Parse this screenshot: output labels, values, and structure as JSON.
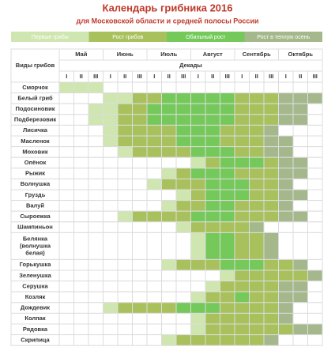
{
  "header": {
    "title": "Календарь грибника 2016",
    "subtitle": "для Московской области и средней полосы России"
  },
  "legend": [
    {
      "label": "Первые грибы",
      "color": "#cfe6b0"
    },
    {
      "label": "Рост грибов",
      "color": "#a9c15c"
    },
    {
      "label": "Обильный рост",
      "color": "#74c95a"
    },
    {
      "label": "Рост в теплую осень",
      "color": "#a4b88c"
    }
  ],
  "table": {
    "species_header": "Виды грибов",
    "decades_header": "Декады",
    "months": [
      "Май",
      "Июнь",
      "Июль",
      "Август",
      "Сентябрь",
      "Октябрь"
    ],
    "decades": [
      "I",
      "II",
      "III"
    ],
    "rows": [
      {
        "name": "Сморчок",
        "cells": [
          1,
          1,
          1,
          null,
          null,
          null,
          null,
          null,
          null,
          null,
          null,
          null,
          null,
          null,
          null,
          null,
          null,
          null
        ]
      },
      {
        "name": "Белый гриб",
        "cells": [
          null,
          null,
          null,
          1,
          1,
          2,
          2,
          3,
          3,
          3,
          3,
          3,
          2,
          2,
          2,
          4,
          4,
          4
        ]
      },
      {
        "name": "Подосиновик",
        "cells": [
          null,
          null,
          1,
          1,
          2,
          2,
          3,
          3,
          3,
          3,
          3,
          3,
          2,
          2,
          2,
          4,
          4,
          null
        ]
      },
      {
        "name": "Подберезовик",
        "cells": [
          null,
          null,
          1,
          1,
          2,
          2,
          3,
          3,
          3,
          3,
          3,
          3,
          2,
          2,
          2,
          4,
          4,
          null
        ]
      },
      {
        "name": "Лисичка",
        "cells": [
          null,
          null,
          null,
          1,
          2,
          2,
          2,
          2,
          3,
          3,
          3,
          2,
          2,
          2,
          4,
          null,
          null,
          null
        ]
      },
      {
        "name": "Масленок",
        "cells": [
          null,
          null,
          null,
          1,
          2,
          2,
          2,
          2,
          3,
          3,
          3,
          2,
          2,
          2,
          4,
          4,
          null,
          null
        ]
      },
      {
        "name": "Моховик",
        "cells": [
          null,
          null,
          null,
          null,
          1,
          2,
          2,
          2,
          2,
          3,
          3,
          3,
          2,
          2,
          4,
          4,
          null,
          null
        ]
      },
      {
        "name": "Опёнок",
        "cells": [
          null,
          null,
          null,
          null,
          null,
          null,
          null,
          null,
          null,
          1,
          2,
          3,
          3,
          3,
          2,
          4,
          4,
          null
        ]
      },
      {
        "name": "Рыжик",
        "cells": [
          null,
          null,
          null,
          null,
          null,
          null,
          null,
          1,
          2,
          3,
          3,
          3,
          2,
          2,
          2,
          4,
          4,
          null
        ]
      },
      {
        "name": "Волнушка",
        "cells": [
          null,
          null,
          null,
          null,
          null,
          null,
          1,
          2,
          2,
          2,
          3,
          3,
          3,
          2,
          2,
          4,
          null,
          null
        ]
      },
      {
        "name": "Груздь",
        "cells": [
          null,
          null,
          null,
          null,
          null,
          null,
          null,
          null,
          1,
          2,
          3,
          3,
          3,
          2,
          2,
          4,
          4,
          null
        ]
      },
      {
        "name": "Валуй",
        "cells": [
          null,
          null,
          null,
          null,
          null,
          null,
          null,
          1,
          2,
          2,
          3,
          3,
          2,
          2,
          2,
          4,
          null,
          null
        ]
      },
      {
        "name": "Сыроежка",
        "cells": [
          null,
          null,
          null,
          null,
          1,
          2,
          2,
          2,
          2,
          3,
          3,
          3,
          2,
          2,
          2,
          4,
          4,
          null
        ]
      },
      {
        "name": "Шампиньон",
        "cells": [
          null,
          null,
          null,
          null,
          null,
          null,
          null,
          null,
          1,
          2,
          2,
          2,
          2,
          4,
          null,
          null,
          null,
          null
        ]
      },
      {
        "name": [
          "Белянка",
          "(волнушка",
          "белая)"
        ],
        "cells": [
          null,
          null,
          null,
          null,
          null,
          null,
          null,
          null,
          null,
          1,
          3,
          3,
          2,
          2,
          4,
          null,
          null,
          null
        ]
      },
      {
        "name": "Горькушка",
        "cells": [
          null,
          null,
          null,
          null,
          null,
          null,
          null,
          1,
          2,
          2,
          2,
          3,
          3,
          3,
          2,
          2,
          4,
          null
        ]
      },
      {
        "name": "Зеленушка",
        "cells": [
          null,
          null,
          null,
          null,
          null,
          null,
          null,
          null,
          null,
          null,
          null,
          1,
          2,
          2,
          2,
          2,
          2,
          4
        ]
      },
      {
        "name": "Серушка",
        "cells": [
          null,
          null,
          null,
          null,
          null,
          null,
          null,
          null,
          null,
          null,
          1,
          2,
          2,
          2,
          2,
          4,
          4,
          null
        ]
      },
      {
        "name": "Козляк",
        "cells": [
          null,
          null,
          null,
          null,
          null,
          null,
          null,
          null,
          null,
          1,
          2,
          2,
          3,
          2,
          2,
          4,
          4,
          null
        ]
      },
      {
        "name": "Дождевик",
        "cells": [
          null,
          null,
          null,
          1,
          2,
          2,
          2,
          2,
          3,
          3,
          3,
          2,
          2,
          2,
          2,
          4,
          null,
          null
        ]
      },
      {
        "name": "Колпак",
        "cells": [
          null,
          null,
          null,
          null,
          null,
          null,
          null,
          null,
          null,
          1,
          2,
          2,
          2,
          2,
          2,
          4,
          null,
          null
        ]
      },
      {
        "name": "Рядовка",
        "cells": [
          null,
          null,
          null,
          null,
          null,
          null,
          null,
          null,
          null,
          1,
          2,
          2,
          2,
          2,
          2,
          2,
          4,
          4
        ]
      },
      {
        "name": "Скрипица",
        "cells": [
          null,
          null,
          null,
          null,
          null,
          null,
          null,
          1,
          2,
          2,
          2,
          2,
          2,
          2,
          4,
          null,
          null,
          null
        ]
      }
    ]
  }
}
